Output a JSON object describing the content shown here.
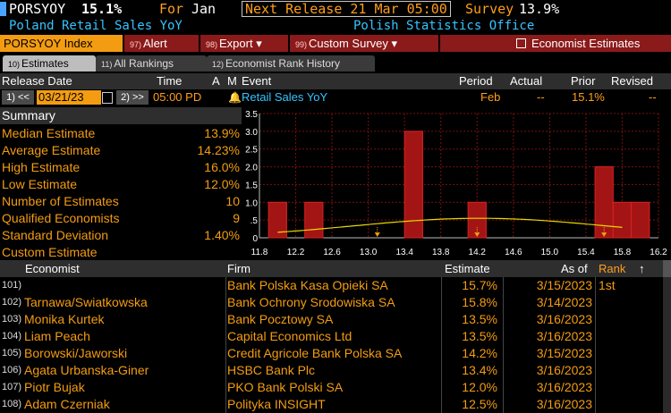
{
  "header": {
    "ticker": "PORSYOY",
    "value": "15.1%",
    "for_label": "For",
    "for_month": "Jan",
    "next_release": "Next Release 21 Mar 05:00",
    "survey_label": "Survey",
    "survey_value": "13.9%",
    "description": "Poland Retail Sales YoY",
    "source": "Polish Statistics Office"
  },
  "toolbar": {
    "index_label": "PORSYOY Index",
    "alert": {
      "num": "97)",
      "label": "Alert"
    },
    "export": {
      "num": "98)",
      "label": "Export ▾"
    },
    "custom_survey": {
      "num": "99)",
      "label": "Custom Survey ▾"
    },
    "economist_estimates": "Economist Estimates"
  },
  "tabs": [
    {
      "num": "10)",
      "label": "Estimates"
    },
    {
      "num": "11)",
      "label": "All Rankings"
    },
    {
      "num": "12)",
      "label": "Economist Rank History"
    }
  ],
  "columns": {
    "release_date": "Release Date",
    "time": "Time",
    "a": "A",
    "m": "M",
    "event": "Event",
    "period": "Period",
    "actual": "Actual",
    "prior": "Prior",
    "revised": "Revised"
  },
  "release_row": {
    "prev_btn": "1) <<",
    "date": "03/21/23",
    "next_btn": "2) >>",
    "time": "05:00 PD",
    "event": "Retail Sales YoY",
    "period": "Feb",
    "actual": "--",
    "prior": "15.1%",
    "revised": "--"
  },
  "summary": {
    "title": "Summary",
    "rows": [
      {
        "label": "Median Estimate",
        "value": "13.9%"
      },
      {
        "label": "Average Estimate",
        "value": "14.23%"
      },
      {
        "label": "High Estimate",
        "value": "16.0%"
      },
      {
        "label": "Low Estimate",
        "value": "12.0%"
      },
      {
        "label": "Number of Estimates",
        "value": "10"
      },
      {
        "label": "Qualified Economists",
        "value": "9"
      },
      {
        "label": "Standard Deviation",
        "value": "1.40%"
      },
      {
        "label": "Custom Estimate",
        "value": ""
      }
    ]
  },
  "chart_data": {
    "type": "bar",
    "title": "",
    "xlabel": "",
    "ylabel": "",
    "x_ticks": [
      "11.8",
      "12.2",
      "12.6",
      "13.0",
      "13.4",
      "13.8",
      "14.2",
      "14.6",
      "15.0",
      "15.4",
      "15.8",
      "16.2"
    ],
    "y_ticks": [
      "0",
      ".5",
      "1.0",
      "1.5",
      "2.0",
      "2.5",
      "3.0",
      "3.5"
    ],
    "xlim": [
      11.8,
      16.2
    ],
    "ylim": [
      0,
      3.5
    ],
    "bars": [
      {
        "x": 12.0,
        "value": 1
      },
      {
        "x": 12.4,
        "value": 1
      },
      {
        "x": 13.5,
        "value": 3
      },
      {
        "x": 14.2,
        "value": 1
      },
      {
        "x": 15.6,
        "value": 2
      },
      {
        "x": 15.8,
        "value": 1
      },
      {
        "x": 16.0,
        "value": 1
      }
    ],
    "markers": [
      13.1,
      14.2,
      15.6
    ],
    "grid": true,
    "colors": {
      "bar": "#a31515",
      "bar_edge": "#d92020",
      "curve": "#e6d800",
      "grid": "#7a1010"
    }
  },
  "lower_columns": {
    "economist": "Economist",
    "firm": "Firm",
    "estimate": "Estimate",
    "as_of": "As of",
    "rank": "Rank",
    "sort": "↑"
  },
  "economists": [
    {
      "idx": "101)",
      "name": "",
      "firm": "Bank Polska Kasa Opieki SA",
      "estimate": "15.7%",
      "as_of": "3/15/2023",
      "rank": "1st"
    },
    {
      "idx": "102)",
      "name": "Tarnawa/Swiatkowska",
      "firm": "Bank Ochrony Srodowiska SA",
      "estimate": "15.8%",
      "as_of": "3/14/2023",
      "rank": ""
    },
    {
      "idx": "103)",
      "name": "Monika Kurtek",
      "firm": "Bank Pocztowy SA",
      "estimate": "13.5%",
      "as_of": "3/16/2023",
      "rank": ""
    },
    {
      "idx": "104)",
      "name": "Liam Peach",
      "firm": "Capital Economics Ltd",
      "estimate": "13.5%",
      "as_of": "3/16/2023",
      "rank": ""
    },
    {
      "idx": "105)",
      "name": "Borowski/Jaworski",
      "firm": "Credit Agricole Bank Polska SA",
      "estimate": "14.2%",
      "as_of": "3/15/2023",
      "rank": ""
    },
    {
      "idx": "106)",
      "name": "Agata Urbanska-Giner",
      "firm": "HSBC Bank Plc",
      "estimate": "13.4%",
      "as_of": "3/16/2023",
      "rank": ""
    },
    {
      "idx": "107)",
      "name": "Piotr Bujak",
      "firm": "PKO Bank Polski SA",
      "estimate": "12.0%",
      "as_of": "3/16/2023",
      "rank": ""
    },
    {
      "idx": "108)",
      "name": "Adam Czerniak",
      "firm": "Polityka INSIGHT",
      "estimate": "12.5%",
      "as_of": "3/16/2023",
      "rank": ""
    }
  ]
}
